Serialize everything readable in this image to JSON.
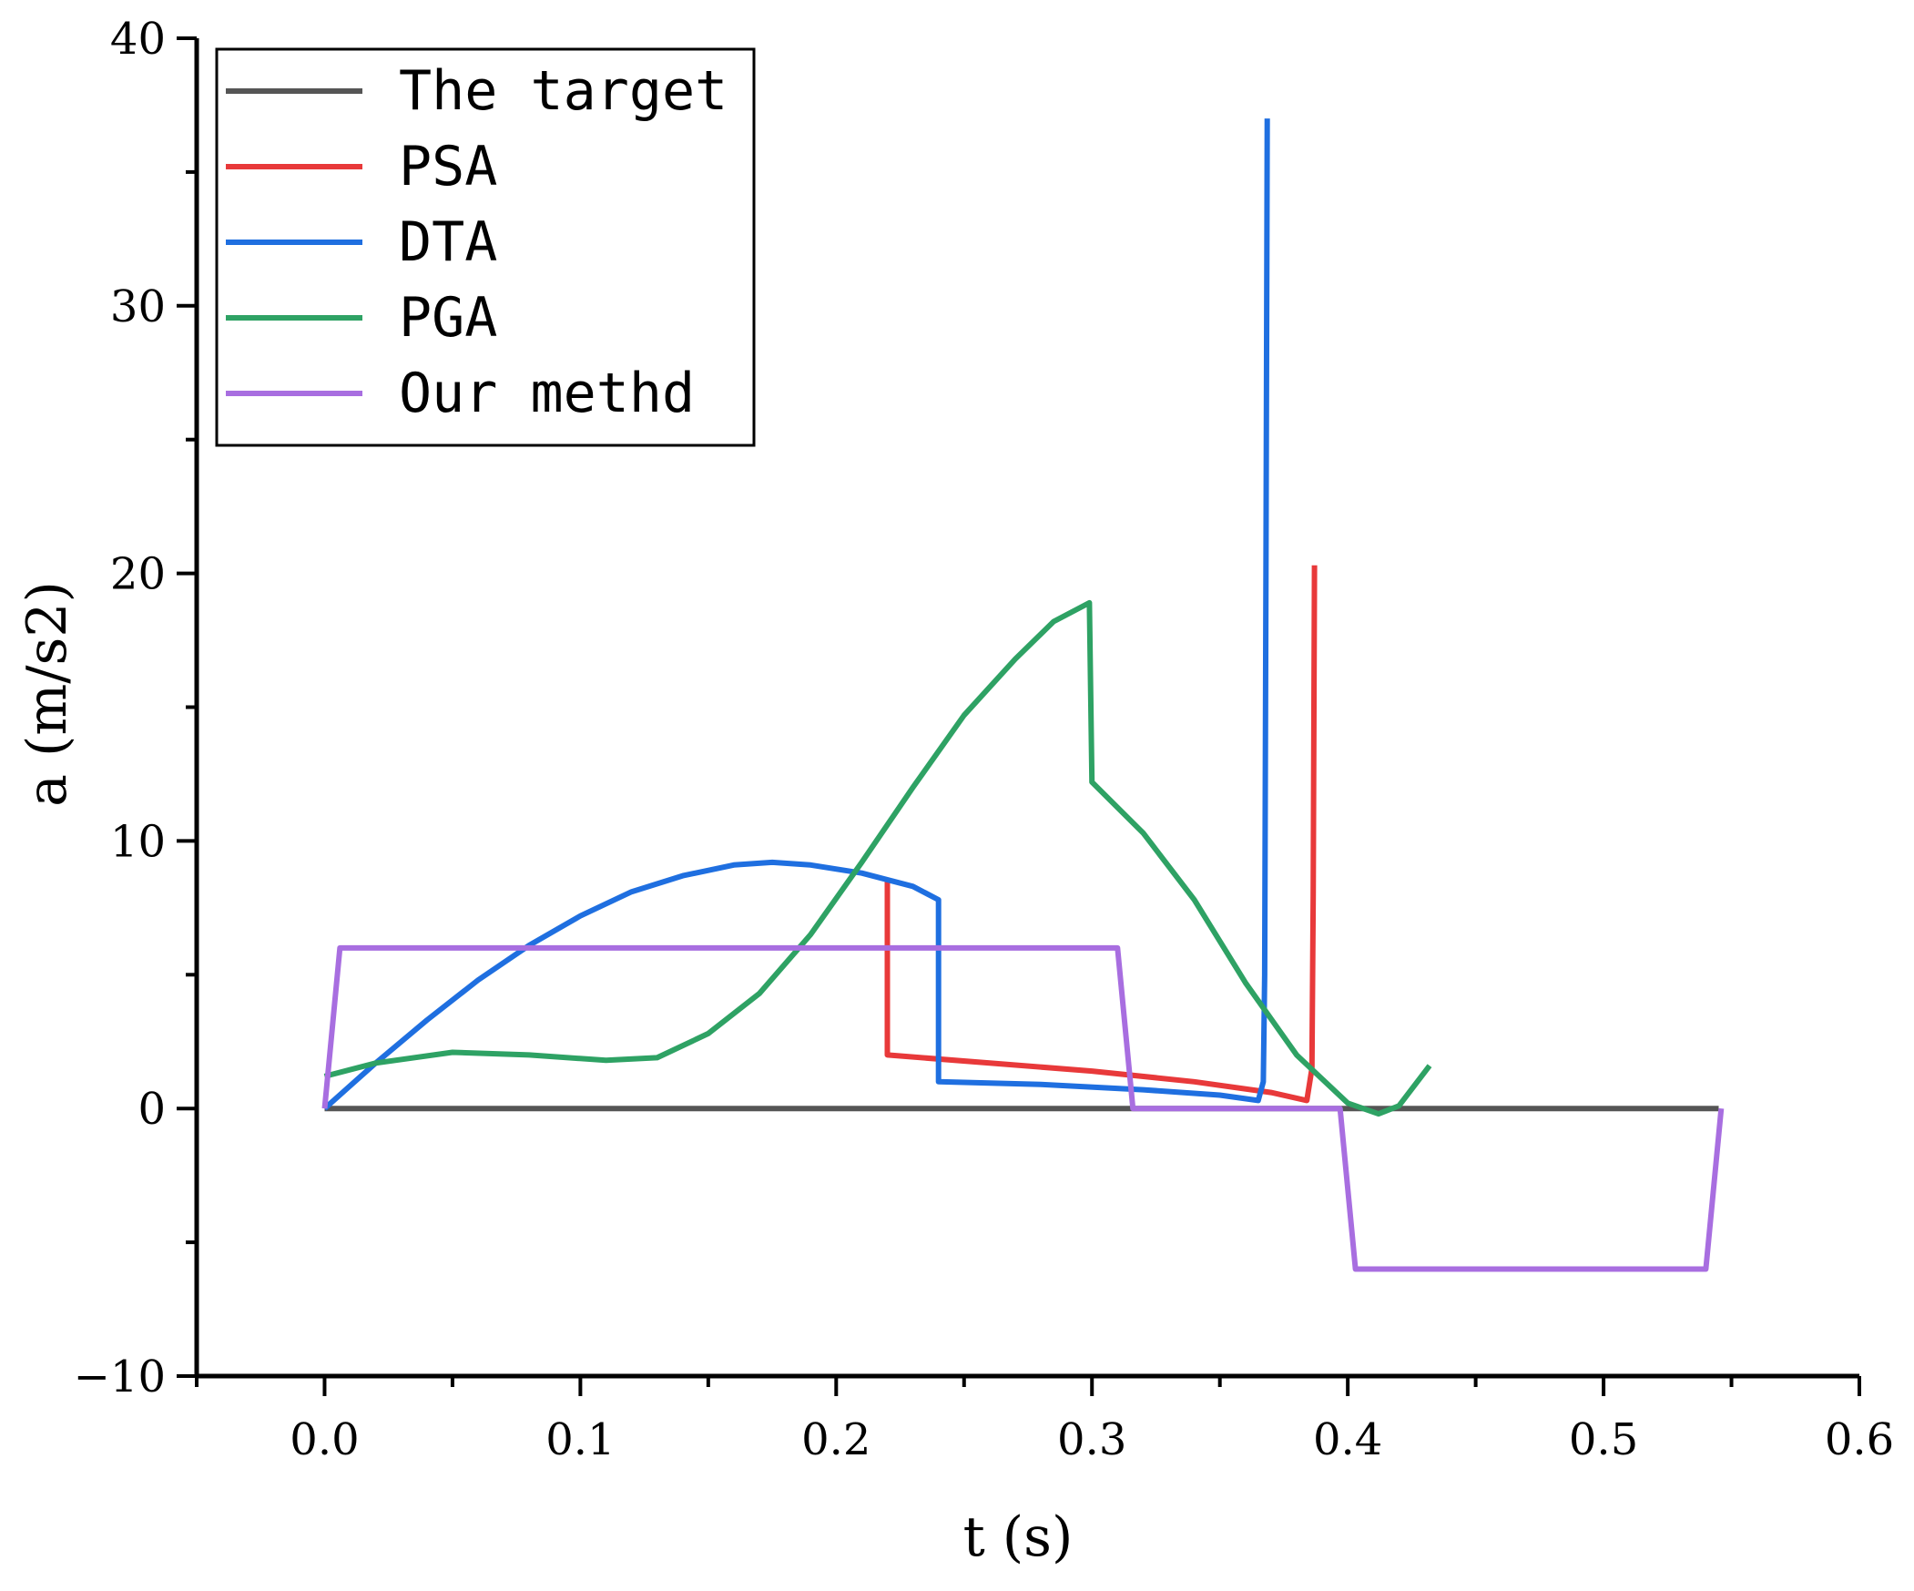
{
  "chart_data": {
    "type": "line",
    "xlabel": "t (s)",
    "ylabel": "a (m/s2)",
    "xlim": [
      -0.05,
      0.6
    ],
    "ylim": [
      -10,
      40
    ],
    "xticks": [
      0.0,
      0.1,
      0.2,
      0.3,
      0.4,
      0.5,
      0.6
    ],
    "xtick_labels": [
      "0.0",
      "0.1",
      "0.2",
      "0.3",
      "0.4",
      "0.5",
      "0.6"
    ],
    "yticks": [
      -10,
      0,
      10,
      20,
      30,
      40
    ],
    "ytick_labels": [
      "−10",
      "0",
      "10",
      "20",
      "30",
      "40"
    ],
    "grid": false,
    "legend_position": "top-left",
    "series": [
      {
        "name": "The target",
        "color": "#555555",
        "points": [
          [
            0.0,
            0
          ],
          [
            0.545,
            0
          ]
        ]
      },
      {
        "name": "PSA",
        "color": "#e8393a",
        "points": [
          [
            0.22,
            8.5
          ],
          [
            0.22,
            2.0
          ],
          [
            0.26,
            1.7
          ],
          [
            0.3,
            1.4
          ],
          [
            0.34,
            1.0
          ],
          [
            0.37,
            0.6
          ],
          [
            0.384,
            0.3
          ],
          [
            0.386,
            1.5
          ],
          [
            0.3865,
            8.0
          ],
          [
            0.387,
            20.3
          ]
        ]
      },
      {
        "name": "DTA",
        "color": "#1f6fe0",
        "points": [
          [
            0.0,
            0.0
          ],
          [
            0.02,
            1.7
          ],
          [
            0.04,
            3.3
          ],
          [
            0.06,
            4.8
          ],
          [
            0.08,
            6.1
          ],
          [
            0.1,
            7.2
          ],
          [
            0.12,
            8.1
          ],
          [
            0.14,
            8.7
          ],
          [
            0.16,
            9.1
          ],
          [
            0.175,
            9.2
          ],
          [
            0.19,
            9.1
          ],
          [
            0.21,
            8.8
          ],
          [
            0.23,
            8.3
          ],
          [
            0.24,
            7.8
          ],
          [
            0.24,
            1.0
          ],
          [
            0.28,
            0.9
          ],
          [
            0.32,
            0.7
          ],
          [
            0.35,
            0.5
          ],
          [
            0.365,
            0.3
          ],
          [
            0.367,
            1.0
          ],
          [
            0.3675,
            5.0
          ],
          [
            0.368,
            20.0
          ],
          [
            0.3685,
            37.0
          ]
        ]
      },
      {
        "name": "PGA",
        "color": "#2ea264",
        "points": [
          [
            0.0,
            1.2
          ],
          [
            0.02,
            1.7
          ],
          [
            0.05,
            2.1
          ],
          [
            0.08,
            2.0
          ],
          [
            0.11,
            1.8
          ],
          [
            0.13,
            1.9
          ],
          [
            0.15,
            2.8
          ],
          [
            0.17,
            4.3
          ],
          [
            0.19,
            6.5
          ],
          [
            0.21,
            9.2
          ],
          [
            0.23,
            12.0
          ],
          [
            0.25,
            14.7
          ],
          [
            0.27,
            16.8
          ],
          [
            0.285,
            18.2
          ],
          [
            0.299,
            18.9
          ],
          [
            0.3,
            12.2
          ],
          [
            0.32,
            10.3
          ],
          [
            0.34,
            7.8
          ],
          [
            0.36,
            4.7
          ],
          [
            0.38,
            2.0
          ],
          [
            0.4,
            0.2
          ],
          [
            0.412,
            -0.2
          ],
          [
            0.42,
            0.1
          ],
          [
            0.432,
            1.6
          ]
        ]
      },
      {
        "name": "Our methd",
        "color": "#a86ee0",
        "points": [
          [
            0.0,
            0
          ],
          [
            0.006,
            6
          ],
          [
            0.31,
            6
          ],
          [
            0.316,
            0
          ],
          [
            0.397,
            0
          ],
          [
            0.403,
            -6
          ],
          [
            0.54,
            -6
          ],
          [
            0.546,
            0
          ]
        ]
      }
    ]
  }
}
